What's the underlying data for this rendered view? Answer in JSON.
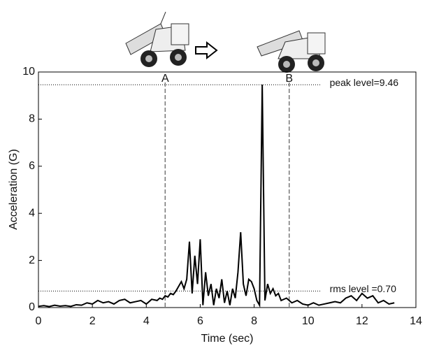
{
  "chart_data": {
    "type": "line",
    "x_label": "Time (sec)",
    "y_label": "Acceleration (G)",
    "xlim": [
      0,
      14
    ],
    "xticks": [
      0,
      2,
      4,
      6,
      8,
      10,
      12,
      14
    ],
    "ylim": [
      0,
      10
    ],
    "yticks": [
      0,
      2,
      4,
      6,
      8,
      10
    ],
    "grid": false,
    "series": [
      {
        "color": "#000000",
        "x": [
          0,
          0.2,
          0.4,
          0.6,
          0.8,
          1,
          1.2,
          1.4,
          1.6,
          1.8,
          2,
          2.2,
          2.4,
          2.6,
          2.8,
          3,
          3.2,
          3.4,
          3.6,
          3.8,
          4,
          4.2,
          4.4,
          4.5,
          4.6,
          4.7,
          4.8,
          4.9,
          5,
          5.1,
          5.2,
          5.3,
          5.4,
          5.5,
          5.6,
          5.7,
          5.8,
          5.9,
          6,
          6.1,
          6.2,
          6.3,
          6.4,
          6.5,
          6.6,
          6.7,
          6.8,
          6.9,
          7,
          7.1,
          7.2,
          7.3,
          7.4,
          7.5,
          7.6,
          7.7,
          7.8,
          7.9,
          8,
          8.1,
          8.2,
          8.3,
          8.4,
          8.5,
          8.6,
          8.7,
          8.8,
          8.9,
          9,
          9.2,
          9.4,
          9.6,
          9.8,
          10,
          10.2,
          10.4,
          10.6,
          10.8,
          11,
          11.2,
          11.4,
          11.6,
          11.8,
          12,
          12.2,
          12.4,
          12.6,
          12.8,
          13,
          13.2
        ],
        "values": [
          0.05,
          0.08,
          0.04,
          0.1,
          0.06,
          0.08,
          0.05,
          0.12,
          0.1,
          0.2,
          0.15,
          0.3,
          0.2,
          0.25,
          0.15,
          0.3,
          0.35,
          0.2,
          0.25,
          0.3,
          0.15,
          0.35,
          0.3,
          0.4,
          0.35,
          0.5,
          0.45,
          0.6,
          0.55,
          0.7,
          0.9,
          1.1,
          0.8,
          1.2,
          2.8,
          0.6,
          2.2,
          1,
          2.9,
          0.1,
          1.5,
          0.5,
          1,
          0.1,
          0.8,
          0.4,
          1.2,
          0.2,
          0.7,
          0.1,
          0.8,
          0.4,
          1.5,
          3.2,
          1,
          0.5,
          1.2,
          1.1,
          0.8,
          0.3,
          0.1,
          9.46,
          0.3,
          1,
          0.6,
          0.8,
          0.5,
          0.6,
          0.3,
          0.4,
          0.2,
          0.3,
          0.15,
          0.1,
          0.2,
          0.1,
          0.15,
          0.2,
          0.25,
          0.2,
          0.4,
          0.5,
          0.3,
          0.6,
          0.4,
          0.5,
          0.2,
          0.3,
          0.15,
          0.2
        ]
      }
    ],
    "levels": [
      {
        "value": 9.46,
        "label": "peak level=9.46"
      },
      {
        "value": 0.7,
        "label": "rms level =0.70"
      }
    ],
    "markers": [
      {
        "x": 4.7,
        "label": "A"
      },
      {
        "x": 9.3,
        "label": "B"
      }
    ]
  }
}
